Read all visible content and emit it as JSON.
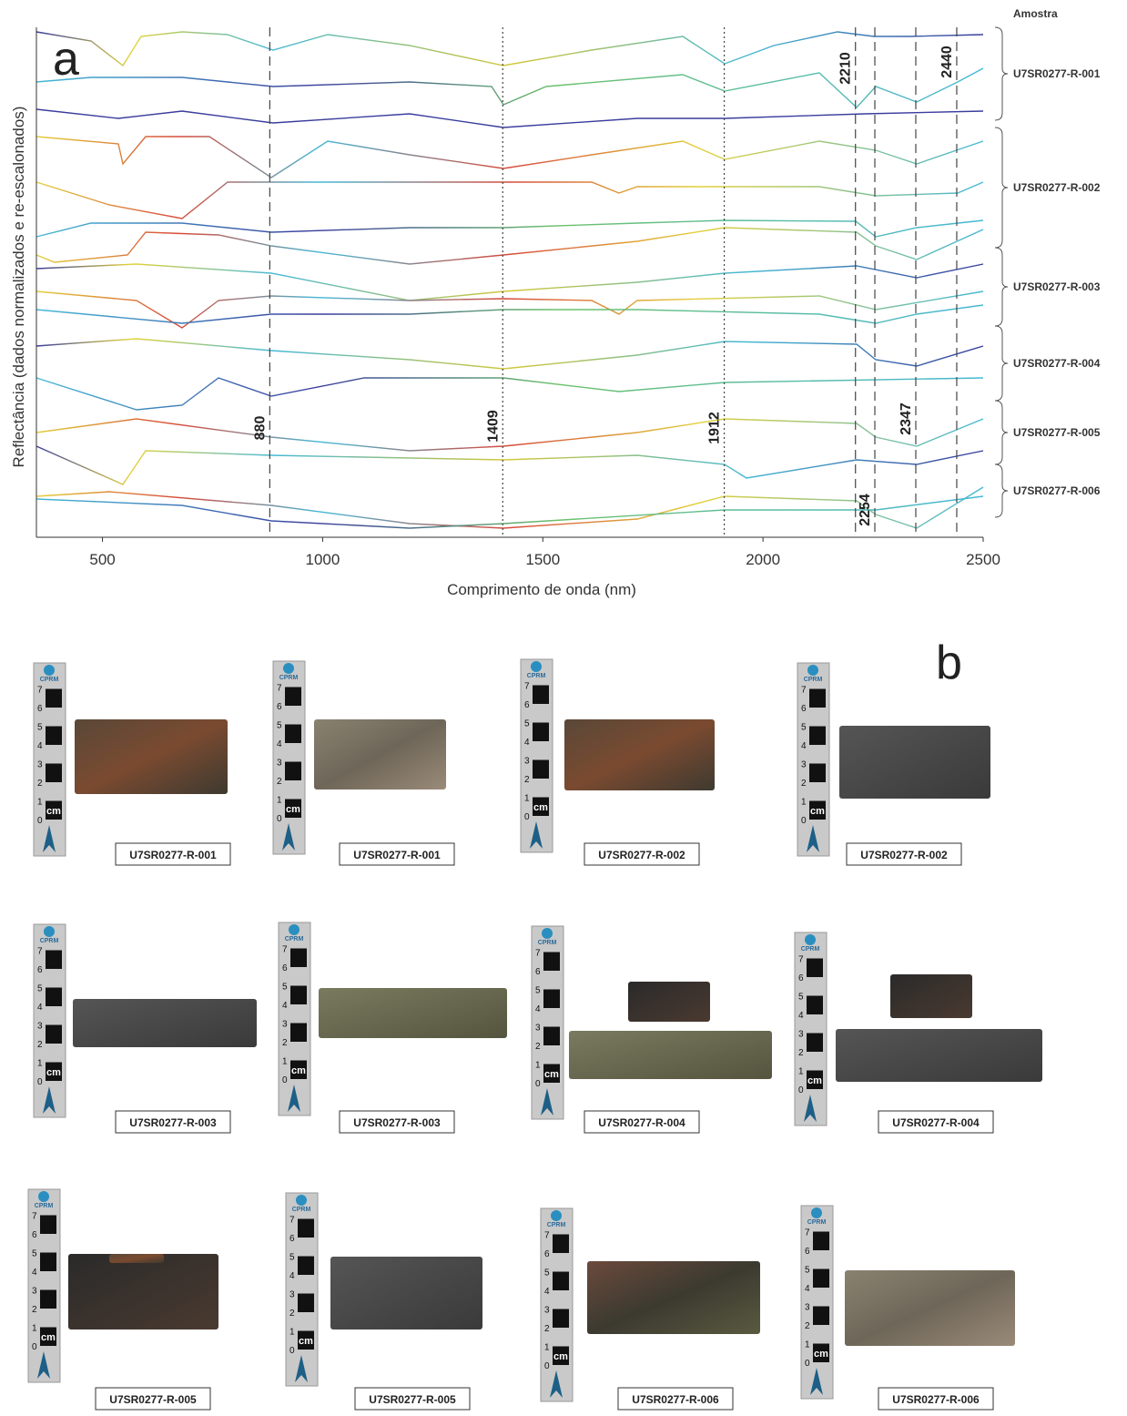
{
  "panel_a": {
    "label": "a",
    "y_axis_label": "Reflectância (dados normalizados e re-escalonados)",
    "x_axis_label": "Comprimento de onda (nm)",
    "xlim": [
      350,
      2500
    ],
    "xticks": [
      500,
      1000,
      1500,
      2000,
      2500
    ],
    "features": [
      880,
      1409,
      1912,
      2210,
      2254,
      2347,
      2440
    ],
    "legend_title": "Amostra",
    "samples": [
      "U7SR0277-R-001",
      "U7SR0277-R-002",
      "U7SR0277-R-003",
      "U7SR0277-R-004",
      "U7SR0277-R-005",
      "U7SR0277-R-006"
    ]
  },
  "panel_b": {
    "label": "b",
    "scale_bar": {
      "logo": "CPRM",
      "marks": [
        0,
        1,
        2,
        3,
        4,
        5,
        6,
        7
      ],
      "unit": "cm"
    },
    "photos": [
      {
        "label": "U7SR0277-R-001"
      },
      {
        "label": "U7SR0277-R-001"
      },
      {
        "label": "U7SR0277-R-002"
      },
      {
        "label": "U7SR0277-R-002"
      },
      {
        "label": "U7SR0277-R-003"
      },
      {
        "label": "U7SR0277-R-003"
      },
      {
        "label": "U7SR0277-R-004"
      },
      {
        "label": "U7SR0277-R-004"
      },
      {
        "label": "U7SR0277-R-005"
      },
      {
        "label": "U7SR0277-R-005"
      },
      {
        "label": "U7SR0277-R-006"
      },
      {
        "label": "U7SR0277-R-006"
      }
    ]
  }
}
